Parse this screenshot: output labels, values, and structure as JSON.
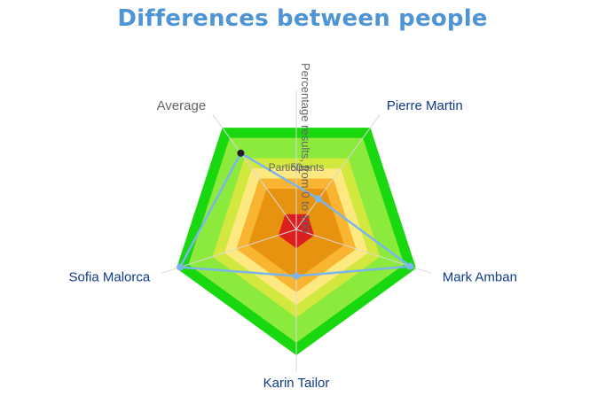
{
  "chart_data": {
    "type": "radar",
    "title": "Differences between people",
    "categories": [
      "Pierre Martin",
      "Mark Amban",
      "Karin Tailor",
      "Sofia Malorca",
      "Average"
    ],
    "axis_title": "Percentage results, from 0 to 100",
    "rmax": 100,
    "bands": [
      {
        "from": 90,
        "to": 100,
        "color": "#19d80f"
      },
      {
        "from": 70,
        "to": 90,
        "color": "#8cea3c"
      },
      {
        "from": 60,
        "to": 70,
        "color": "#d2e83e"
      },
      {
        "from": 50,
        "to": 60,
        "color": "#fde97f"
      },
      {
        "from": 40,
        "to": 50,
        "color": "#f9b531"
      },
      {
        "from": 15,
        "to": 40,
        "color": "#e8930f"
      },
      {
        "from": 0,
        "to": 15,
        "color": "#dd1e1f"
      }
    ],
    "band_labels": [
      {
        "text": "Participants",
        "at": 50
      },
      {
        "text": "50",
        "at": 50
      }
    ],
    "series": [
      {
        "name": "Participants",
        "values": [
          30,
          95,
          37,
          97,
          75
        ],
        "color": "#7cb5ec",
        "type": "line",
        "closed": true
      },
      {
        "name": "Average",
        "values": [
          null,
          null,
          null,
          null,
          75
        ],
        "color": "#222222",
        "type": "point"
      }
    ],
    "label_colors": {
      "default": "#123b8c",
      "average": "#666666"
    },
    "grid_color": "#d9d9d9"
  }
}
